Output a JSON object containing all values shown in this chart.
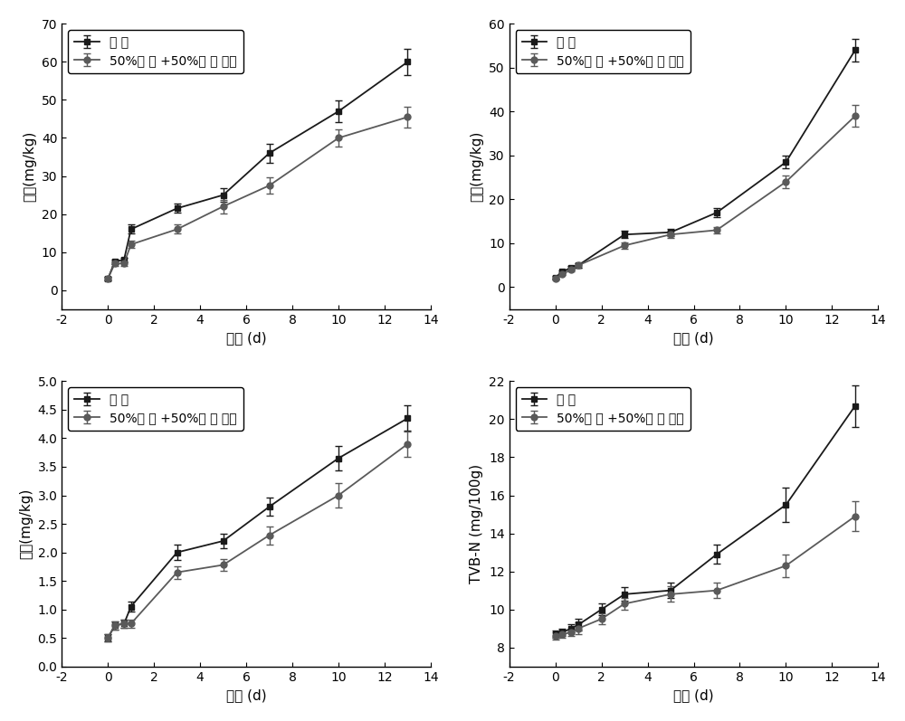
{
  "subplot1": {
    "ylabel": "腐胺(mg/kg)",
    "xlabel": "时间 (d)",
    "xlim": [
      -2,
      14
    ],
    "ylim": [
      -5,
      70
    ],
    "yticks": [
      0,
      10,
      20,
      30,
      40,
      50,
      60,
      70
    ],
    "xticks": [
      -2,
      0,
      2,
      4,
      6,
      8,
      10,
      12,
      14
    ],
    "air_x": [
      0,
      0.3,
      0.7,
      1,
      3,
      5,
      7,
      10,
      13
    ],
    "air_y": [
      3,
      7.5,
      8,
      16,
      21.5,
      25,
      36,
      47,
      60
    ],
    "air_err": [
      0.5,
      0.6,
      0.6,
      1.2,
      1.2,
      1.8,
      2.5,
      2.8,
      3.5
    ],
    "map_x": [
      0,
      0.3,
      0.7,
      1,
      3,
      5,
      7,
      10,
      13
    ],
    "map_y": [
      3,
      7,
      7,
      12,
      16,
      22,
      27.5,
      40,
      45.5
    ],
    "map_err": [
      0.5,
      0.6,
      0.6,
      1.0,
      1.2,
      1.8,
      2.2,
      2.2,
      2.8
    ]
  },
  "subplot2": {
    "ylabel": "尸胺(mg/kg)",
    "xlabel": "时间 (d)",
    "xlim": [
      -2,
      14
    ],
    "ylim": [
      -5,
      60
    ],
    "yticks": [
      0,
      10,
      20,
      30,
      40,
      50,
      60
    ],
    "xticks": [
      -2,
      0,
      2,
      4,
      6,
      8,
      10,
      12,
      14
    ],
    "air_x": [
      0,
      0.3,
      0.7,
      1,
      3,
      5,
      7,
      10,
      13
    ],
    "air_y": [
      2.2,
      3.5,
      4.5,
      5,
      12,
      12.5,
      17,
      28.5,
      54
    ],
    "air_err": [
      0.3,
      0.3,
      0.4,
      0.5,
      0.8,
      0.8,
      1.0,
      1.5,
      2.5
    ],
    "map_x": [
      0,
      0.3,
      0.7,
      1,
      3,
      5,
      7,
      10,
      13
    ],
    "map_y": [
      2,
      3,
      4,
      5,
      9.5,
      12,
      13,
      24,
      39
    ],
    "map_err": [
      0.3,
      0.3,
      0.4,
      0.5,
      0.7,
      0.8,
      0.8,
      1.5,
      2.5
    ]
  },
  "subplot3": {
    "ylabel": "酪胺(mg/kg)",
    "xlabel": "时间 (d)",
    "xlim": [
      -2,
      14
    ],
    "ylim": [
      0.0,
      5.0
    ],
    "yticks": [
      0.0,
      0.5,
      1.0,
      1.5,
      2.0,
      2.5,
      3.0,
      3.5,
      4.0,
      4.5,
      5.0
    ],
    "xticks": [
      -2,
      0,
      2,
      4,
      6,
      8,
      10,
      12,
      14
    ],
    "air_x": [
      0,
      0.3,
      0.7,
      1,
      3,
      5,
      7,
      10,
      13
    ],
    "air_y": [
      0.5,
      0.72,
      0.75,
      1.05,
      2.0,
      2.2,
      2.8,
      3.65,
      4.35
    ],
    "air_err": [
      0.06,
      0.07,
      0.07,
      0.09,
      0.13,
      0.13,
      0.16,
      0.22,
      0.22
    ],
    "map_x": [
      0,
      0.3,
      0.7,
      1,
      3,
      5,
      7,
      10,
      13
    ],
    "map_y": [
      0.5,
      0.72,
      0.75,
      0.75,
      1.65,
      1.78,
      2.3,
      3.0,
      3.9
    ],
    "map_err": [
      0.06,
      0.07,
      0.07,
      0.07,
      0.11,
      0.11,
      0.16,
      0.22,
      0.22
    ]
  },
  "subplot4": {
    "ylabel": "TVB-N (mg/100g)",
    "xlabel": "时间 (d)",
    "xlim": [
      -2,
      14
    ],
    "ylim": [
      7,
      22
    ],
    "yticks": [
      8,
      10,
      12,
      14,
      16,
      18,
      20,
      22
    ],
    "xticks": [
      -2,
      0,
      2,
      4,
      6,
      8,
      10,
      12,
      14
    ],
    "air_x": [
      0,
      0.3,
      0.7,
      1,
      2,
      3,
      5,
      7,
      10,
      13
    ],
    "air_y": [
      8.7,
      8.8,
      9.0,
      9.2,
      10.0,
      10.8,
      11.0,
      12.9,
      15.5,
      20.7
    ],
    "air_err": [
      0.2,
      0.2,
      0.2,
      0.3,
      0.3,
      0.35,
      0.4,
      0.5,
      0.9,
      1.1
    ],
    "map_x": [
      0,
      0.3,
      0.7,
      1,
      2,
      3,
      5,
      7,
      10,
      13
    ],
    "map_y": [
      8.6,
      8.7,
      8.8,
      9.0,
      9.5,
      10.3,
      10.8,
      11.0,
      12.3,
      14.9
    ],
    "map_err": [
      0.2,
      0.2,
      0.2,
      0.3,
      0.3,
      0.3,
      0.4,
      0.4,
      0.6,
      0.8
    ]
  },
  "legend_air": "空 气",
  "legend_map": "50%氧 气 +50%二 氧 化碳",
  "air_color": "#1a1a1a",
  "map_color": "#5a5a5a",
  "background_color": "#f0f0f0"
}
